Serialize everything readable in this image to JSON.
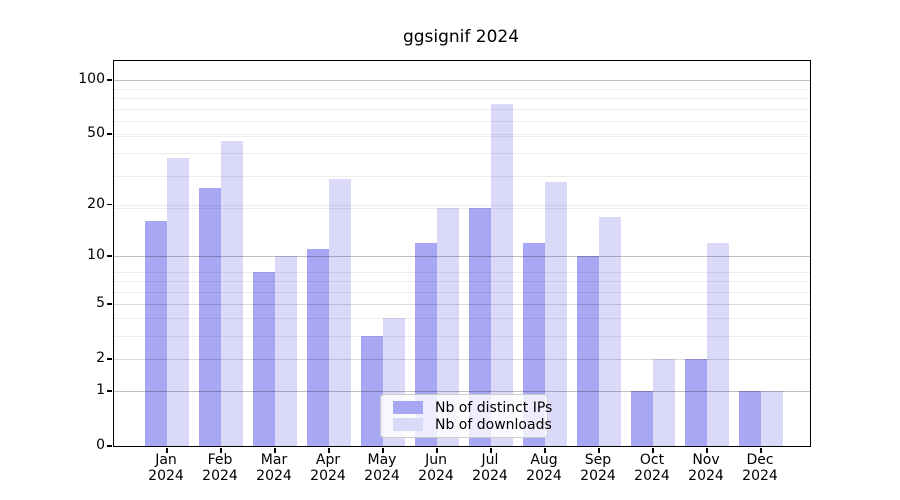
{
  "title": "ggsignif 2024",
  "legend": {
    "items": [
      {
        "label": "Nb of distinct IPs",
        "color": "#a7a7f3"
      },
      {
        "label": "Nb of downloads",
        "color": "#dadaf8"
      }
    ]
  },
  "chart_data": {
    "type": "bar",
    "title": "ggsignif 2024",
    "categories": [
      "Jan 2024",
      "Feb 2024",
      "Mar 2024",
      "Apr 2024",
      "May 2024",
      "Jun 2024",
      "Jul 2024",
      "Aug 2024",
      "Sep 2024",
      "Oct 2024",
      "Nov 2024",
      "Dec 2024"
    ],
    "x_tick_top_lines": [
      "Jan",
      "Feb",
      "Mar",
      "Apr",
      "May",
      "Jun",
      "Jul",
      "Aug",
      "Sep",
      "Oct",
      "Nov",
      "Dec"
    ],
    "x_tick_bottom_line": "2024",
    "series": [
      {
        "name": "Nb of distinct IPs",
        "color": "#a7a7f3",
        "values": [
          16,
          25,
          8,
          11,
          3,
          12,
          19,
          12,
          10,
          1,
          2,
          1
        ]
      },
      {
        "name": "Nb of downloads",
        "color": "#dadaf8",
        "values": [
          37,
          46,
          10,
          28,
          4,
          19,
          74,
          27,
          17,
          2,
          12,
          1
        ]
      }
    ],
    "xlabel": "",
    "ylabel": "",
    "yscale": "log1p",
    "ytick_values": [
      100,
      50,
      20,
      10,
      5,
      2,
      1,
      0
    ],
    "major_gridline_values": [
      1,
      10,
      100
    ],
    "minor_gridline_values": [
      2,
      5,
      20,
      50
    ],
    "minor_gridline_log_positions": [
      3,
      4,
      5,
      6,
      7,
      8,
      9,
      20,
      30,
      40,
      50,
      60,
      70,
      80,
      90
    ],
    "ylim": [
      0,
      127
    ],
    "grid": true,
    "legend_position": "lower center",
    "background_color": "#ffffff",
    "axis_color": "#000000"
  }
}
